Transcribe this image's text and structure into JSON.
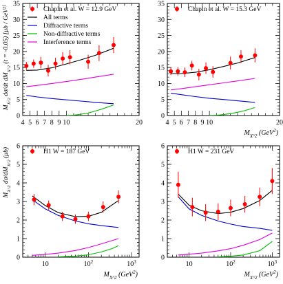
{
  "chart_data": [
    {
      "type": "scatter",
      "xscale": "linear",
      "xlim": [
        4,
        20
      ],
      "ylim": [
        0,
        35
      ],
      "xticks": [
        4,
        5,
        6,
        7,
        8,
        9,
        10,
        20
      ],
      "xtick_labels": [
        "4",
        "5",
        "6",
        "7",
        "8",
        "9",
        "10",
        "20"
      ],
      "yticks": [
        0,
        5,
        10,
        15,
        20,
        25,
        30,
        35
      ],
      "ylabel": "M_X^2 dσ/dt dM_X^2 (t = -0.05) [μb / GeV^2]",
      "xlabel": "",
      "title": "",
      "legend": [
        {
          "label": "Chapin et al. W = 12.9 GeV",
          "kind": "marker",
          "color": "#ff0000"
        },
        {
          "label": "All terms",
          "kind": "line",
          "color": "#000000"
        },
        {
          "label": "Diffractive terms",
          "kind": "line",
          "color": "#0000cc"
        },
        {
          "label": "Non-diffractive terms",
          "kind": "line",
          "color": "#00bb00"
        },
        {
          "label": "Interference terms",
          "kind": "line",
          "color": "#dd00dd"
        }
      ],
      "series": [
        {
          "kind": "data",
          "color": "#ff0000",
          "x": [
            4.5,
            5.5,
            6.5,
            7.5,
            8.5,
            9.5,
            10.5,
            13,
            14.5,
            16.5
          ],
          "y": [
            15.5,
            16.2,
            16.5,
            14,
            16.2,
            17.8,
            18.2,
            16.8,
            19.5,
            22
          ],
          "yerr": [
            1.3,
            1.3,
            1.8,
            1.8,
            1.8,
            2,
            2.2,
            2.2,
            2.5,
            2.5
          ]
        },
        {
          "kind": "curve",
          "color": "#000000",
          "x": [
            4.5,
            6,
            8,
            10,
            12,
            14,
            16.5
          ],
          "y": [
            14.1,
            14.2,
            14.9,
            16.1,
            17.4,
            18.8,
            21
          ]
        },
        {
          "kind": "curve",
          "color": "#0000cc",
          "x": [
            4.5,
            6,
            8,
            10,
            12,
            14,
            16.5
          ],
          "y": [
            6.3,
            5.8,
            5.3,
            4.9,
            4.5,
            4.1,
            3.7
          ]
        },
        {
          "kind": "curve",
          "color": "#00bb00",
          "x": [
            10,
            11,
            12,
            13,
            14,
            15,
            16.5
          ],
          "y": [
            0,
            0.1,
            0.4,
            0.8,
            1.4,
            2.1,
            3.3
          ]
        },
        {
          "kind": "curve",
          "color": "#dd00dd",
          "x": [
            4.5,
            6,
            8,
            10,
            12,
            14,
            16.5
          ],
          "y": [
            9,
            9.4,
            10,
            10.6,
            11.3,
            12,
            12.9
          ]
        }
      ]
    },
    {
      "type": "scatter",
      "xscale": "linear",
      "xlim": [
        4,
        20
      ],
      "ylim": [
        0,
        35
      ],
      "xticks": [
        4,
        5,
        6,
        7,
        8,
        9,
        10,
        20
      ],
      "xtick_labels": [
        "4",
        "5",
        "6",
        "7",
        "8",
        "9",
        "10",
        "20"
      ],
      "yticks": [
        0,
        5,
        10,
        15,
        20,
        25,
        30,
        35
      ],
      "xlabel": "M_X^2 (GeV^2)",
      "title": "",
      "legend": [
        {
          "label": "Chapin et al. W = 15.3 GeV",
          "kind": "marker",
          "color": "#ff0000"
        }
      ],
      "series": [
        {
          "kind": "data",
          "color": "#ff0000",
          "x": [
            4.5,
            5.5,
            6.5,
            7.5,
            8.5,
            9.5,
            10.5,
            13,
            14.5,
            16.5
          ],
          "y": [
            13.8,
            13.8,
            13.5,
            15.6,
            12.8,
            14.8,
            13.6,
            16.4,
            18.4,
            18.8
          ],
          "yerr": [
            1.2,
            1.3,
            1.5,
            1.5,
            1.8,
            1.8,
            1.8,
            2,
            2,
            2.2
          ]
        },
        {
          "kind": "curve",
          "color": "#000000",
          "x": [
            4.5,
            6,
            8,
            10,
            12,
            14,
            16.5
          ],
          "y": [
            13.1,
            13.1,
            13.5,
            14.3,
            15.3,
            16.4,
            18.1
          ]
        },
        {
          "kind": "curve",
          "color": "#0000cc",
          "x": [
            4.5,
            6,
            8,
            10,
            12,
            14,
            16.5
          ],
          "y": [
            7,
            6.5,
            5.9,
            5.4,
            5,
            4.6,
            4.1
          ]
        },
        {
          "kind": "curve",
          "color": "#00bb00",
          "x": [
            10,
            11,
            12,
            13,
            14,
            15,
            16.5
          ],
          "y": [
            0,
            0.1,
            0.3,
            0.6,
            1,
            1.5,
            2.5
          ]
        },
        {
          "kind": "curve",
          "color": "#dd00dd",
          "x": [
            4.5,
            6,
            8,
            10,
            12,
            14,
            16.5
          ],
          "y": [
            8,
            8.4,
            9,
            9.6,
            10.2,
            10.8,
            11.6
          ]
        }
      ]
    },
    {
      "type": "scatter",
      "xscale": "log",
      "xlim": [
        3,
        1500
      ],
      "ylim": [
        0,
        6
      ],
      "xticks": [
        10,
        100,
        1000
      ],
      "xtick_labels": [
        "10",
        "10^2",
        "10^3"
      ],
      "yticks": [
        0,
        1,
        2,
        3,
        4,
        5,
        6
      ],
      "ylabel": "M_X^2 dσ/dM_X^2 (μb)",
      "xlabel": "M_X^2 (GeV^2)",
      "title": "",
      "legend": [
        {
          "label": "H1 W = 187 GeV",
          "kind": "marker",
          "color": "#ff0000"
        }
      ],
      "series": [
        {
          "kind": "data",
          "color": "#ff0000",
          "x": [
            5.5,
            12,
            25,
            50,
            100,
            220,
            500
          ],
          "y": [
            3.1,
            2.8,
            2.2,
            2.05,
            2.2,
            2.7,
            3.25
          ],
          "yerr": [
            0.3,
            0.25,
            0.25,
            0.25,
            0.25,
            0.3,
            0.35
          ]
        },
        {
          "kind": "curve",
          "color": "#000000",
          "x": [
            5,
            10,
            20,
            50,
            100,
            200,
            500
          ],
          "y": [
            3.3,
            2.78,
            2.4,
            2.18,
            2.2,
            2.42,
            3.05
          ]
        },
        {
          "kind": "curve",
          "color": "#0000cc",
          "x": [
            5,
            10,
            20,
            50,
            100,
            200,
            500
          ],
          "y": [
            3.1,
            2.6,
            2.25,
            1.95,
            1.8,
            1.7,
            1.6
          ]
        },
        {
          "kind": "curve",
          "color": "#00bb00",
          "x": [
            20,
            50,
            100,
            200,
            350,
            500
          ],
          "y": [
            0.02,
            0.06,
            0.13,
            0.28,
            0.46,
            0.62
          ]
        },
        {
          "kind": "curve",
          "color": "#dd00dd",
          "x": [
            5,
            10,
            20,
            50,
            100,
            200,
            500
          ],
          "y": [
            0.1,
            0.15,
            0.22,
            0.36,
            0.52,
            0.72,
            1.0
          ]
        }
      ]
    },
    {
      "type": "scatter",
      "xscale": "log",
      "xlim": [
        3,
        1500
      ],
      "ylim": [
        0,
        6
      ],
      "xticks": [
        10,
        100,
        1000
      ],
      "xtick_labels": [
        "10",
        "10^2",
        "10^3"
      ],
      "yticks": [
        0,
        1,
        2,
        3,
        4,
        5,
        6
      ],
      "xlabel": "M_X^2 (GeV^2)",
      "title": "",
      "legend": [
        {
          "label": "H1 W = 231 GeV",
          "kind": "marker",
          "color": "#ff0000"
        }
      ],
      "series": [
        {
          "kind": "data",
          "color": "#ff0000",
          "x": [
            5.5,
            12,
            25,
            50,
            100,
            220,
            500,
            1000
          ],
          "y": [
            3.9,
            2.7,
            2.4,
            2.45,
            2.65,
            2.85,
            3.25,
            4.1
          ],
          "yerr": [
            0.7,
            0.5,
            0.45,
            0.45,
            0.45,
            0.45,
            0.5,
            0.7
          ]
        },
        {
          "kind": "curve",
          "color": "#000000",
          "x": [
            5.5,
            10,
            20,
            50,
            100,
            200,
            500,
            1000
          ],
          "y": [
            3.4,
            2.8,
            2.5,
            2.35,
            2.42,
            2.62,
            3.05,
            3.6
          ]
        },
        {
          "kind": "curve",
          "color": "#0000cc",
          "x": [
            5.5,
            10,
            20,
            50,
            100,
            200,
            500,
            1000
          ],
          "y": [
            3.25,
            2.6,
            2.25,
            1.95,
            1.78,
            1.65,
            1.55,
            1.45
          ]
        },
        {
          "kind": "curve",
          "color": "#00bb00",
          "x": [
            50,
            100,
            200,
            500,
            1000
          ],
          "y": [
            0.02,
            0.05,
            0.12,
            0.35,
            0.85
          ]
        },
        {
          "kind": "curve",
          "color": "#dd00dd",
          "x": [
            5.5,
            10,
            20,
            50,
            100,
            200,
            500,
            1000
          ],
          "y": [
            0.12,
            0.16,
            0.22,
            0.34,
            0.46,
            0.64,
            0.95,
            1.3
          ]
        }
      ]
    }
  ]
}
